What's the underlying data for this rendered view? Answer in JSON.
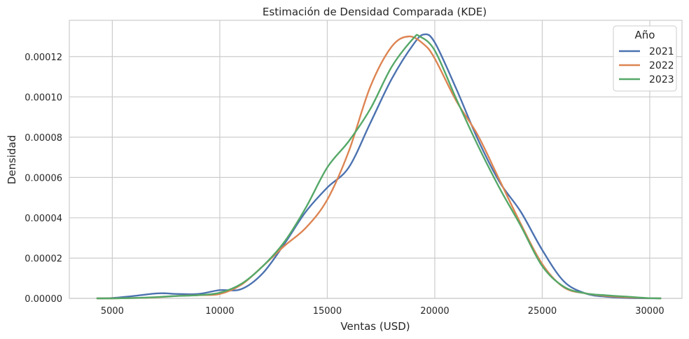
{
  "chart_data": {
    "type": "line",
    "title": "Estimación de Densidad Comparada (KDE)",
    "xlabel": "Ventas (USD)",
    "ylabel": "Densidad",
    "xlim": [
      3000,
      31500
    ],
    "ylim": [
      0,
      0.000138
    ],
    "x_ticks": [
      5000,
      10000,
      15000,
      20000,
      25000,
      30000
    ],
    "x_tick_labels": [
      "5000",
      "10000",
      "15000",
      "20000",
      "25000",
      "30000"
    ],
    "y_ticks": [
      0,
      2e-05,
      4e-05,
      6e-05,
      8e-05,
      0.0001,
      0.00012
    ],
    "y_tick_labels": [
      "0.00000",
      "0.00002",
      "0.00004",
      "0.00006",
      "0.00008",
      "0.00010",
      "0.00012"
    ],
    "grid": true,
    "legend": {
      "title": "Año",
      "placement": "top-right"
    },
    "series": [
      {
        "name": "2021",
        "color": "#4c72b0",
        "points": [
          [
            4300,
            0
          ],
          [
            5000,
            2e-07
          ],
          [
            6000,
            1.2e-06
          ],
          [
            7000,
            2.4e-06
          ],
          [
            7500,
            2.5e-06
          ],
          [
            8000,
            2.2e-06
          ],
          [
            9000,
            2.2e-06
          ],
          [
            10000,
            4.1e-06
          ],
          [
            11000,
            4.6e-06
          ],
          [
            12000,
            1.25e-05
          ],
          [
            13000,
            2.7e-05
          ],
          [
            14000,
            4.3e-05
          ],
          [
            15000,
            5.5e-05
          ],
          [
            16000,
            6.5e-05
          ],
          [
            17000,
            8.7e-05
          ],
          [
            18000,
            0.000109
          ],
          [
            19000,
            0.000126
          ],
          [
            19500,
            0.000131
          ],
          [
            20000,
            0.000127
          ],
          [
            21000,
            0.000104
          ],
          [
            22000,
            7.9e-05
          ],
          [
            23000,
            5.8e-05
          ],
          [
            24000,
            4.3e-05
          ],
          [
            25000,
            2.4e-05
          ],
          [
            26000,
            8.5e-06
          ],
          [
            27000,
            2.5e-06
          ],
          [
            28000,
            8e-07
          ],
          [
            29000,
            2e-07
          ],
          [
            30500,
            0
          ]
        ]
      },
      {
        "name": "2022",
        "color": "#dd8452",
        "points": [
          [
            4300,
            0
          ],
          [
            5000,
            0
          ],
          [
            6000,
            2e-07
          ],
          [
            7000,
            5e-07
          ],
          [
            8000,
            1.2e-06
          ],
          [
            9000,
            1.6e-06
          ],
          [
            10000,
            2.2e-06
          ],
          [
            11000,
            6.8e-06
          ],
          [
            12000,
            1.6e-05
          ],
          [
            13000,
            2.6e-05
          ],
          [
            14000,
            3.5e-05
          ],
          [
            15000,
            4.9e-05
          ],
          [
            16000,
            7.3e-05
          ],
          [
            17000,
            0.000105
          ],
          [
            18000,
            0.000125
          ],
          [
            18800,
            0.00013
          ],
          [
            19500,
            0.000126
          ],
          [
            20000,
            0.000119
          ],
          [
            21000,
            9.8e-05
          ],
          [
            22000,
            8.1e-05
          ],
          [
            23000,
            5.9e-05
          ],
          [
            24000,
            3.7e-05
          ],
          [
            25000,
            1.7e-05
          ],
          [
            26000,
            5.5e-06
          ],
          [
            27000,
            2.5e-06
          ],
          [
            28000,
            1.2e-06
          ],
          [
            29000,
            5e-07
          ],
          [
            30000,
            1e-07
          ],
          [
            30500,
            0
          ]
        ]
      },
      {
        "name": "2023",
        "color": "#55a868",
        "points": [
          [
            4300,
            0
          ],
          [
            5000,
            0
          ],
          [
            6000,
            2e-07
          ],
          [
            7000,
            6e-07
          ],
          [
            8000,
            1.2e-06
          ],
          [
            9000,
            1.6e-06
          ],
          [
            10000,
            2.8e-06
          ],
          [
            11000,
            7.2e-06
          ],
          [
            12000,
            1.6e-05
          ],
          [
            13000,
            2.8e-05
          ],
          [
            14000,
            4.5e-05
          ],
          [
            15000,
            6.5e-05
          ],
          [
            16000,
            7.8e-05
          ],
          [
            17000,
            9.4e-05
          ],
          [
            18000,
            0.000115
          ],
          [
            19000,
            0.000129
          ],
          [
            19300,
            0.00013
          ],
          [
            20000,
            0.000123
          ],
          [
            21000,
            9.9e-05
          ],
          [
            22000,
            7.6e-05
          ],
          [
            23000,
            5.5e-05
          ],
          [
            24000,
            3.6e-05
          ],
          [
            25000,
            1.6e-05
          ],
          [
            26000,
            5.8e-06
          ],
          [
            27000,
            2.5e-06
          ],
          [
            28000,
            1.5e-06
          ],
          [
            29000,
            8e-07
          ],
          [
            30000,
            1e-07
          ],
          [
            30500,
            0
          ]
        ]
      }
    ]
  }
}
